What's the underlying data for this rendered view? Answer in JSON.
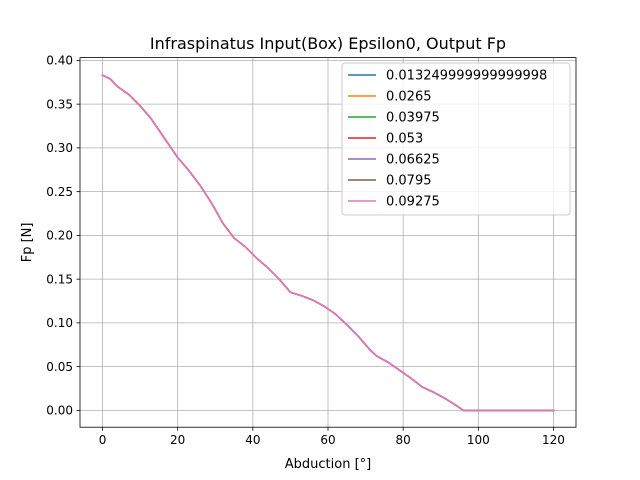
{
  "chart_data": {
    "type": "line",
    "title": "Infraspinatus Input(Box) Epsilon0, Output Fp",
    "xlabel": "Abduction [°]",
    "ylabel": "Fp [N]",
    "xlim": [
      -6,
      126
    ],
    "ylim": [
      -0.0192,
      0.4032
    ],
    "xticks": [
      "0",
      "20",
      "40",
      "60",
      "80",
      "100",
      "120"
    ],
    "xtick_values": [
      0,
      20,
      40,
      60,
      80,
      100,
      120
    ],
    "yticks": [
      "0.00",
      "0.05",
      "0.10",
      "0.15",
      "0.20",
      "0.25",
      "0.30",
      "0.35",
      "0.40"
    ],
    "ytick_values": [
      0.0,
      0.05,
      0.1,
      0.15,
      0.2,
      0.25,
      0.3,
      0.35,
      0.4
    ],
    "grid": true,
    "legend_position": "top-right",
    "x": [
      0,
      2,
      4,
      7,
      10,
      13,
      16,
      20,
      23,
      26,
      29,
      32,
      35,
      38,
      41,
      44,
      47,
      50,
      53,
      56,
      59,
      62,
      65,
      68,
      71,
      73,
      76,
      79,
      82,
      85,
      88,
      91,
      94,
      96,
      100,
      104,
      108,
      112,
      116,
      120
    ],
    "series": [
      {
        "name": "0.013249999999999998",
        "color": "#1f77b4",
        "y": [
          0.383,
          0.379,
          0.37,
          0.361,
          0.348,
          0.333,
          0.314,
          0.289,
          0.274,
          0.257,
          0.237,
          0.214,
          0.197,
          0.187,
          0.174,
          0.163,
          0.15,
          0.135,
          0.131,
          0.126,
          0.119,
          0.11,
          0.098,
          0.085,
          0.07,
          0.062,
          0.055,
          0.046,
          0.037,
          0.027,
          0.021,
          0.014,
          0.006,
          0.0,
          0.0,
          0.0,
          0.0,
          0.0,
          0.0,
          0.0
        ]
      },
      {
        "name": "0.0265",
        "color": "#ff7f0e",
        "y": [
          0.383,
          0.379,
          0.37,
          0.361,
          0.348,
          0.333,
          0.314,
          0.289,
          0.274,
          0.257,
          0.237,
          0.214,
          0.197,
          0.187,
          0.174,
          0.163,
          0.15,
          0.135,
          0.131,
          0.126,
          0.119,
          0.11,
          0.098,
          0.085,
          0.07,
          0.062,
          0.055,
          0.046,
          0.037,
          0.027,
          0.021,
          0.014,
          0.006,
          0.0,
          0.0,
          0.0,
          0.0,
          0.0,
          0.0,
          0.0
        ]
      },
      {
        "name": "0.03975",
        "color": "#2ca02c",
        "y": [
          0.383,
          0.379,
          0.37,
          0.361,
          0.348,
          0.333,
          0.314,
          0.289,
          0.274,
          0.257,
          0.237,
          0.214,
          0.197,
          0.187,
          0.174,
          0.163,
          0.15,
          0.135,
          0.131,
          0.126,
          0.119,
          0.11,
          0.098,
          0.085,
          0.07,
          0.062,
          0.055,
          0.046,
          0.037,
          0.027,
          0.021,
          0.014,
          0.006,
          0.0,
          0.0,
          0.0,
          0.0,
          0.0,
          0.0,
          0.0
        ]
      },
      {
        "name": "0.053",
        "color": "#d62728",
        "y": [
          0.383,
          0.379,
          0.37,
          0.361,
          0.348,
          0.333,
          0.314,
          0.289,
          0.274,
          0.257,
          0.237,
          0.214,
          0.197,
          0.187,
          0.174,
          0.163,
          0.15,
          0.135,
          0.131,
          0.126,
          0.119,
          0.11,
          0.098,
          0.085,
          0.07,
          0.062,
          0.055,
          0.046,
          0.037,
          0.027,
          0.021,
          0.014,
          0.006,
          0.0,
          0.0,
          0.0,
          0.0,
          0.0,
          0.0,
          0.0
        ]
      },
      {
        "name": "0.06625",
        "color": "#9467bd",
        "y": [
          0.383,
          0.379,
          0.37,
          0.361,
          0.348,
          0.333,
          0.314,
          0.289,
          0.274,
          0.257,
          0.237,
          0.214,
          0.197,
          0.187,
          0.174,
          0.163,
          0.15,
          0.135,
          0.131,
          0.126,
          0.119,
          0.11,
          0.098,
          0.085,
          0.07,
          0.062,
          0.055,
          0.046,
          0.037,
          0.027,
          0.021,
          0.014,
          0.006,
          0.0,
          0.0,
          0.0,
          0.0,
          0.0,
          0.0,
          0.0
        ]
      },
      {
        "name": "0.0795",
        "color": "#8c564b",
        "y": [
          0.383,
          0.379,
          0.37,
          0.361,
          0.348,
          0.333,
          0.314,
          0.289,
          0.274,
          0.257,
          0.237,
          0.214,
          0.197,
          0.187,
          0.174,
          0.163,
          0.15,
          0.135,
          0.131,
          0.126,
          0.119,
          0.11,
          0.098,
          0.085,
          0.07,
          0.062,
          0.055,
          0.046,
          0.037,
          0.027,
          0.021,
          0.014,
          0.006,
          0.0,
          0.0,
          0.0,
          0.0,
          0.0,
          0.0,
          0.0
        ]
      },
      {
        "name": "0.09275",
        "color": "#e377c2",
        "y": [
          0.383,
          0.379,
          0.37,
          0.361,
          0.348,
          0.333,
          0.314,
          0.289,
          0.274,
          0.257,
          0.237,
          0.214,
          0.197,
          0.187,
          0.174,
          0.163,
          0.15,
          0.135,
          0.131,
          0.126,
          0.119,
          0.11,
          0.098,
          0.085,
          0.07,
          0.062,
          0.055,
          0.046,
          0.037,
          0.027,
          0.021,
          0.014,
          0.006,
          0.0,
          0.0,
          0.0,
          0.0,
          0.0,
          0.0,
          0.0
        ]
      }
    ]
  }
}
